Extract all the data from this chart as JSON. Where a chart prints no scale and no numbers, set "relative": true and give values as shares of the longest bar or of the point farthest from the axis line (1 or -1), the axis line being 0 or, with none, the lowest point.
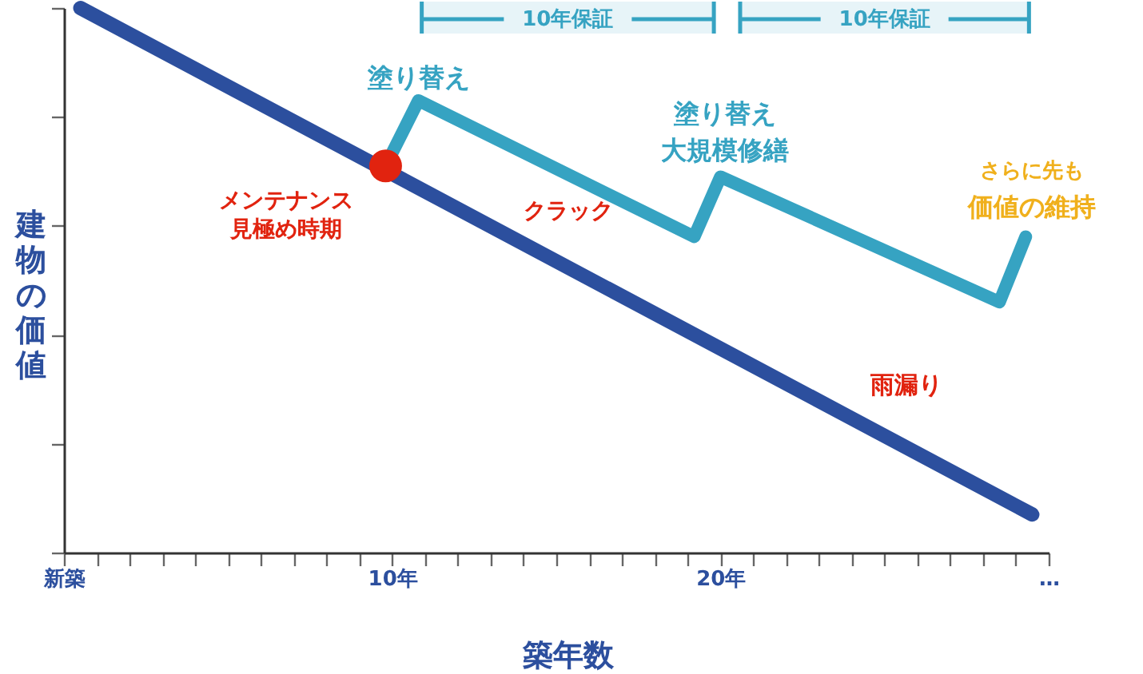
{
  "chart_data": {
    "type": "line",
    "relative": true,
    "xlabel": "築年数",
    "ylabel": "建物の価値",
    "xlim": [
      0,
      30
    ],
    "xticks": [
      {
        "value": 0,
        "label": "新築"
      },
      {
        "value": 1,
        "label": null
      },
      {
        "value": 2,
        "label": null
      },
      {
        "value": 3,
        "label": null
      },
      {
        "value": 4,
        "label": null
      },
      {
        "value": 5,
        "label": null
      },
      {
        "value": 6,
        "label": null
      },
      {
        "value": 7,
        "label": null
      },
      {
        "value": 8,
        "label": null
      },
      {
        "value": 9,
        "label": null
      },
      {
        "value": 10,
        "label": "10年"
      },
      {
        "value": 11,
        "label": null
      },
      {
        "value": 12,
        "label": null
      },
      {
        "value": 13,
        "label": null
      },
      {
        "value": 14,
        "label": null
      },
      {
        "value": 15,
        "label": null
      },
      {
        "value": 16,
        "label": null
      },
      {
        "value": 17,
        "label": null
      },
      {
        "value": 18,
        "label": null
      },
      {
        "value": 19,
        "label": null
      },
      {
        "value": 20,
        "label": "20年"
      },
      {
        "value": 21,
        "label": null
      },
      {
        "value": 22,
        "label": null
      },
      {
        "value": 23,
        "label": null
      },
      {
        "value": 24,
        "label": null
      },
      {
        "value": 25,
        "label": null
      },
      {
        "value": 26,
        "label": null
      },
      {
        "value": 27,
        "label": null
      },
      {
        "value": 28,
        "label": null
      },
      {
        "value": 29,
        "label": null
      },
      {
        "value": 30,
        "label": "…"
      }
    ],
    "series": [
      {
        "color": "#2c4f9e",
        "x": [
          0.5,
          29.5
        ],
        "values": [
          1,
          0.07
        ]
      },
      {
        "color": "#36a3c2",
        "x": [
          9.8,
          10.8,
          19.2,
          20.0,
          28.5,
          29.3
        ],
        "values": [
          0.71,
          0.83,
          0.58,
          0.69,
          0.46,
          0.58
        ]
      },
      {
        "type": "scatter",
        "color": "#e1230f",
        "marker": "circle",
        "x": [
          9.8
        ],
        "values": [
          0.71
        ]
      }
    ],
    "bands": [
      {
        "axis": "x",
        "from": 10.9,
        "to": 19.8,
        "label": "10年保証",
        "color": "#36a3c2"
      },
      {
        "axis": "x",
        "from": 20.6,
        "to": 29.4,
        "label": "10年保証",
        "color": "#36a3c2"
      }
    ],
    "annotations": [
      {
        "text": "メンテナンス",
        "x": 9.8,
        "y": 0.71
      },
      "見極め時期",
      {
        "text": "塗り替え",
        "x": 10.8,
        "y": 0.83
      },
      {
        "text": "塗り替え",
        "x": 20.0,
        "y": 0.69
      },
      {
        "text": "大規模修繕",
        "x": 20.0,
        "y": 0.69
      },
      {
        "text": "さらに先も",
        "x": 29.3,
        "y": 0.58
      },
      {
        "text": "価値の維持",
        "x": 29.3,
        "y": 0.58
      },
      {
        "text": "クラック",
        "x": 14.3,
        "y": 0.57
      },
      {
        "text": "雨漏り",
        "x": 24.6,
        "y": 0.25
      }
    ]
  }
}
